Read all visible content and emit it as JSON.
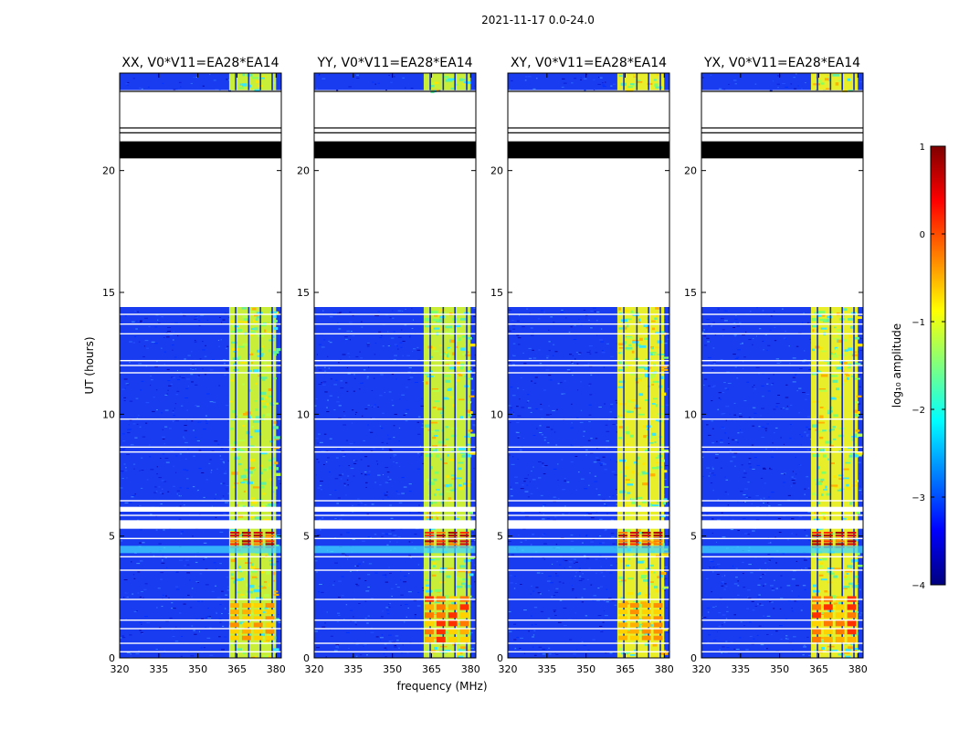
{
  "figure_title": "2021-11-17 0.0-24.0",
  "chart_data": [
    {
      "type": "heatmap",
      "title": "XX, V0*V11=EA28*EA14",
      "xlabel": "frequency (MHz)",
      "ylabel": "UT (hours)",
      "xlim": [
        320,
        382
      ],
      "ylim": [
        0,
        24
      ],
      "xticks": [
        "320",
        "335",
        "350",
        "365",
        "380"
      ],
      "yticks": [
        "0",
        "5",
        "10",
        "15",
        "20"
      ],
      "signal_band_mhz": [
        362,
        380
      ],
      "signal_columns_mhz": [
        364.5,
        369.5,
        374,
        378.5
      ],
      "strong_rfi_hours": [
        4.5,
        5.2
      ],
      "data_gap_hours": [
        14.4,
        23.3
      ],
      "black_band_hours": [
        20.5,
        21.2
      ]
    },
    {
      "type": "heatmap",
      "title": "YY, V0*V11=EA28*EA14",
      "xlabel": "frequency (MHz)",
      "ylabel": "UT (hours)",
      "xlim": [
        320,
        382
      ],
      "ylim": [
        0,
        24
      ],
      "xticks": [
        "320",
        "335",
        "350",
        "365",
        "380"
      ],
      "yticks": [
        "0",
        "5",
        "10",
        "15",
        "20"
      ],
      "signal_band_mhz": [
        362,
        380
      ],
      "signal_columns_mhz": [
        364.5,
        369.5,
        374,
        378.5
      ],
      "strong_rfi_hours": [
        4.5,
        5.2
      ],
      "data_gap_hours": [
        14.4,
        23.3
      ],
      "black_band_hours": [
        20.5,
        21.2
      ]
    },
    {
      "type": "heatmap",
      "title": "XY, V0*V11=EA28*EA14",
      "xlabel": "frequency (MHz)",
      "ylabel": "UT (hours)",
      "xlim": [
        320,
        382
      ],
      "ylim": [
        0,
        24
      ],
      "xticks": [
        "320",
        "335",
        "350",
        "365",
        "380"
      ],
      "yticks": [
        "0",
        "5",
        "10",
        "15",
        "20"
      ],
      "signal_band_mhz": [
        362,
        380
      ],
      "signal_columns_mhz": [
        364.5,
        369.5,
        374,
        378.5
      ],
      "strong_rfi_hours": [
        4.5,
        5.2
      ],
      "data_gap_hours": [
        14.4,
        23.3
      ],
      "black_band_hours": [
        20.5,
        21.2
      ]
    },
    {
      "type": "heatmap",
      "title": "YX, V0*V11=EA28*EA14",
      "xlabel": "frequency (MHz)",
      "ylabel": "UT (hours)",
      "xlim": [
        320,
        382
      ],
      "ylim": [
        0,
        24
      ],
      "xticks": [
        "320",
        "335",
        "350",
        "365",
        "380"
      ],
      "yticks": [
        "0",
        "5",
        "10",
        "15",
        "20"
      ],
      "signal_band_mhz": [
        362,
        380
      ],
      "signal_columns_mhz": [
        364.5,
        369.5,
        374,
        378.5
      ],
      "strong_rfi_hours": [
        4.5,
        5.2
      ],
      "data_gap_hours": [
        14.4,
        23.3
      ],
      "black_band_hours": [
        20.5,
        21.2
      ]
    }
  ],
  "colorbar": {
    "label": "log₁₀ amplitude",
    "range": [
      -4,
      1
    ],
    "ticks": [
      "1",
      "0",
      "−1",
      "−2",
      "−3",
      "−4"
    ],
    "colors": [
      "#00007f",
      "#0000ff",
      "#007fff",
      "#00ffff",
      "#7fff7f",
      "#ffff00",
      "#ff7f00",
      "#ff0000",
      "#7f0000"
    ]
  }
}
